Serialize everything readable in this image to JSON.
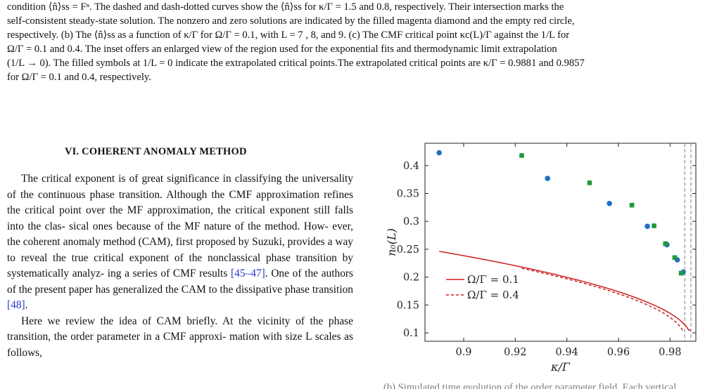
{
  "caption": {
    "lines": [
      "condition ⟨n̂⟩ss = Fⁿ. The dashed and dash-dotted curves show the ⟨n̂⟩ss for κ/Γ = 1.5 and 0.8, respectively. Their intersection marks the",
      "self-consistent steady-state solution. The nonzero and zero solutions are indicated by the filled magenta diamond and the empty red circle,",
      "respectively. (b) The ⟨n̂⟩ss as a function of κ/Γ for Ω/Γ = 0.1, with L = 7 , 8, and 9. (c) The CMF critical point κc(L)/Γ against the 1/L for",
      "Ω/Γ = 0.1 and 0.4. The inset offers an enlarged view of the region used for the exponential fits and thermodynamic limit extrapolation",
      "(1/L → 0). The filled symbols at 1/L = 0 indicate the extrapolated critical points.The extrapolated critical points are κ/Γ = 0.9881 and 0.9857",
      "for Ω/Γ = 0.1 and 0.4, respectively."
    ]
  },
  "section": {
    "heading": "VI.   COHERENT ANOMALY METHOD"
  },
  "body": {
    "p1_lines": [
      "The critical exponent is of great significance in classifying",
      "the universality of the continuous phase transition. Although",
      "the CMF approximation refines the critical point over the MF",
      "approximation, the critical exponent still falls into the clas-",
      "sical ones because of the MF nature of the method.  How-",
      "ever, the coherent anomaly method (CAM), first proposed by",
      "Suzuki, provides a way to reveal the true critical exponent",
      "of the nonclassical phase transition by systematically analyz-",
      "ing a series of CMF results  "
    ],
    "p1_ref": "[45–47]",
    "p1_after_ref": ". One of the authors of",
    "p1_tail_lines": [
      "the present paper has generalized the CAM to the dissipative",
      "phase transition "
    ],
    "p1_tail_ref": "[48]",
    "p1_tail_end": ".",
    "p2_lines": [
      "Here we review the idea of CAM briefly. At the vicinity of",
      "the phase transition, the order parameter in a CMF approxi-",
      "mation with size L scales as follows,"
    ]
  },
  "bottom_fragment": "(b) Simulated time evolution of the order parameter field. Each vertical",
  "chart_data": {
    "type": "scatter",
    "xlabel": "κ/Γ",
    "ylabel": "n₀(L)",
    "xlim": [
      0.885,
      0.99
    ],
    "ylim": [
      0.085,
      0.44
    ],
    "xticks": [
      0.9,
      0.92,
      0.94,
      0.96,
      0.98
    ],
    "xtick_labels": [
      "0.9",
      "0.92",
      "0.94",
      "0.96",
      "0.98"
    ],
    "yticks": [
      0.1,
      0.15,
      0.2,
      0.25,
      0.3,
      0.35,
      0.4
    ],
    "ytick_labels": [
      "0.1",
      "0.15",
      "0.2",
      "0.25",
      "0.3",
      "0.35",
      "0.4"
    ],
    "legend_position": "lower-left",
    "vlines": [
      0.9857,
      0.9881
    ],
    "series": [
      {
        "name": "Ω/Γ = 0.1",
        "color": "#cc1f1f",
        "marker_color": "#1f6fc5",
        "marker": "circle",
        "line_style": "solid",
        "points": [
          [
            0.8905,
            0.423
          ],
          [
            0.9325,
            0.377
          ],
          [
            0.9565,
            0.332
          ],
          [
            0.9712,
            0.291
          ],
          [
            0.9788,
            0.258
          ],
          [
            0.9828,
            0.231
          ],
          [
            0.9851,
            0.209
          ]
        ],
        "critical": 0.9881,
        "amplitude": 0.5,
        "exponent": 0.5
      },
      {
        "name": "Ω/Γ = 0.4",
        "color": "#cc1f1f",
        "marker_color": "#1f9a3a",
        "marker": "square",
        "line_style": "dashed",
        "points": [
          [
            0.9225,
            0.418
          ],
          [
            0.9488,
            0.369
          ],
          [
            0.9652,
            0.329
          ],
          [
            0.9738,
            0.292
          ],
          [
            0.9782,
            0.26
          ],
          [
            0.9818,
            0.235
          ],
          [
            0.9843,
            0.207
          ]
        ],
        "critical": 0.9857,
        "amplitude": 0.5,
        "exponent": 0.5
      }
    ]
  }
}
